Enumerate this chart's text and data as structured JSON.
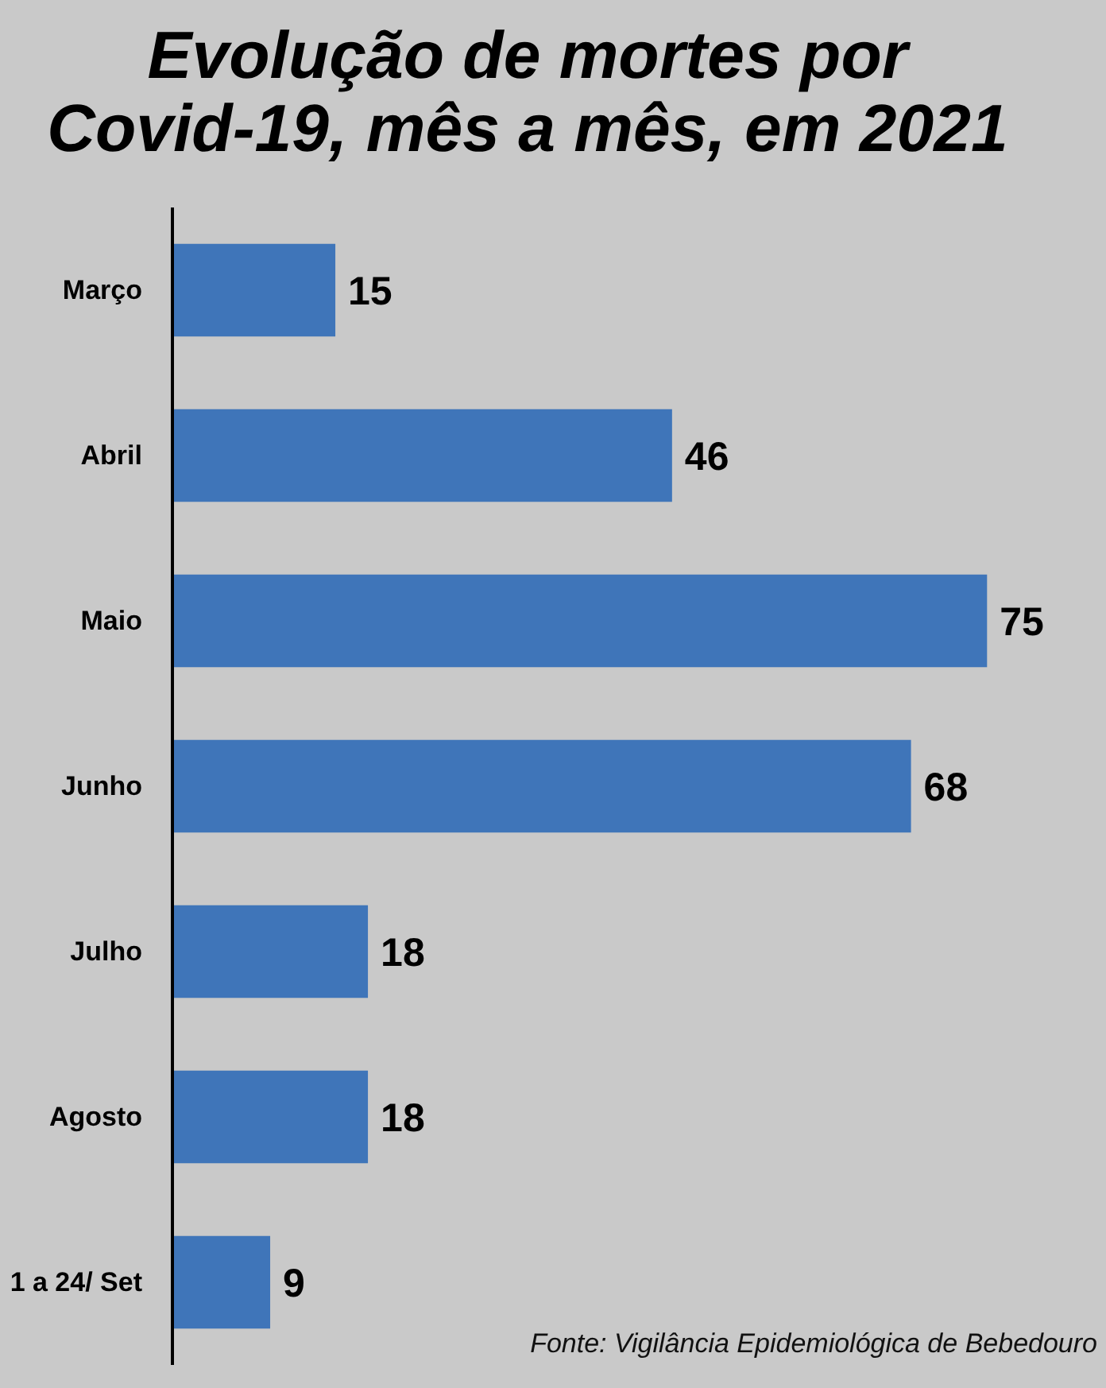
{
  "chart_data": {
    "type": "bar",
    "orientation": "horizontal",
    "title": "Evolução de mortes por Covid-19, mês a mês, em 2021",
    "categories": [
      "Março",
      "Abril",
      "Maio",
      "Junho",
      "Julho",
      "Agosto",
      "1 a 24/ Set"
    ],
    "values": [
      15,
      46,
      75,
      68,
      18,
      18,
      9
    ],
    "color": "#3f75b9",
    "data_labels": true,
    "grid": false,
    "annotations": [
      "Fonte: Vigilância Epidemiológica de Bebedouro"
    ]
  }
}
